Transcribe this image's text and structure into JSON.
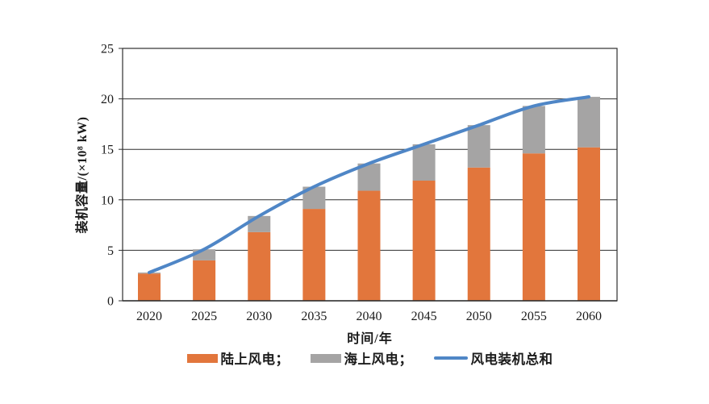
{
  "page": {
    "background": "#ffffff"
  },
  "chart_data": {
    "type": "bar",
    "subtype": "stacked-bars-with-smoothed-total-line",
    "title": "",
    "categories": [
      "2020",
      "2025",
      "2030",
      "2035",
      "2040",
      "2045",
      "2050",
      "2055",
      "2060"
    ],
    "series": [
      {
        "name": "陆上风电",
        "type": "bar",
        "stack": "capacity",
        "color": "#E2763C",
        "values": [
          2.7,
          4.0,
          6.8,
          9.1,
          10.9,
          11.9,
          13.2,
          14.6,
          15.2
        ]
      },
      {
        "name": "海上风电",
        "type": "bar",
        "stack": "capacity",
        "color": "#A5A4A4",
        "values": [
          0.1,
          1.1,
          1.6,
          2.2,
          2.7,
          3.6,
          4.2,
          4.7,
          5.0
        ]
      },
      {
        "name": "风电装机总和",
        "type": "line",
        "color": "#4F86C6",
        "values": [
          2.8,
          5.1,
          8.4,
          11.3,
          13.6,
          15.5,
          17.4,
          19.3,
          20.2
        ]
      }
    ],
    "xlabel": "时间/年",
    "ylabel": "装机容量/(×10⁸ kW)",
    "ylim": [
      0,
      25
    ],
    "yticks": [
      0,
      5,
      10,
      15,
      20,
      25
    ],
    "grid": true,
    "plot_border": true,
    "axis_color": "#2f2f2f",
    "tick_label_color": "#1b1b1b",
    "legend_position": "bottom"
  },
  "legend": {
    "items": [
      {
        "label": "陆上风电；",
        "swatch": "bar-orange"
      },
      {
        "label": "海上风电；",
        "swatch": "bar-gray"
      },
      {
        "label": "风电装机总和",
        "swatch": "line-blue"
      }
    ]
  }
}
